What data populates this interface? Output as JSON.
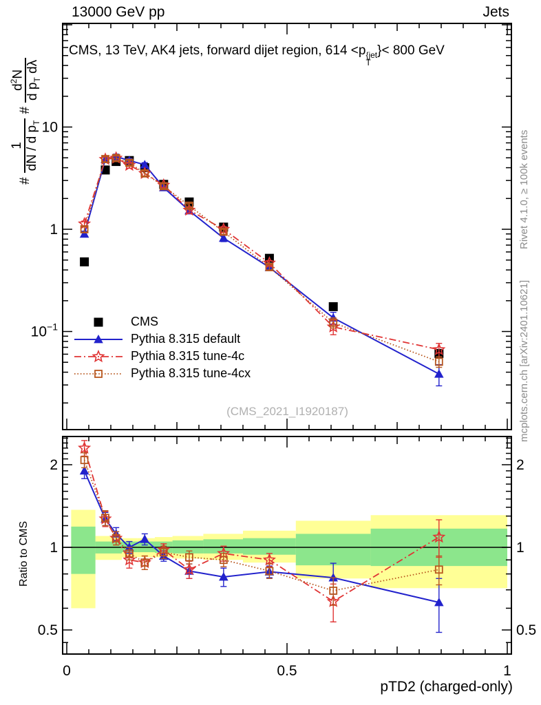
{
  "header": {
    "beam": "13000 GeV pp",
    "process": "Jets"
  },
  "title": {
    "prefix": "CMS, 13 TeV, AK4 jets, forward dijet region, 614 <p",
    "sup": "{jet",
    "sub": "T",
    "suffix": "}< 800 GeV"
  },
  "y_axis_label": {
    "hash1": "#",
    "frac1": {
      "num": "1",
      "den": "dN / d p",
      "den_sub": "T"
    },
    "hash2": "#",
    "frac2": {
      "num_pre": "d",
      "num_sup": "2",
      "num_post": "N",
      "den_pre": "d p",
      "den_sub": "T",
      "den_post": " dλ"
    }
  },
  "ratio_axis_label": "Ratio to CMS",
  "x_axis_label": "pTD2 (charged-only)",
  "watermark": "(CMS_2021_I1920187)",
  "credits": {
    "rivet": "Rivet 4.1.0, ≥ 100k events",
    "mcplots": "mcplots.cern.ch [arXiv:2401.10621]"
  },
  "legend": {
    "items": [
      {
        "label": "CMS",
        "series": 0
      },
      {
        "label": "Pythia 8.315 default",
        "series": 1
      },
      {
        "label": "Pythia 8.315 tune-4c",
        "series": 2
      },
      {
        "label": "Pythia 8.315 tune-4cx",
        "series": 3
      }
    ]
  },
  "chart_data": {
    "type": "line",
    "title": "CMS, 13 TeV, AK4 jets, forward dijet region, 614 < pT{jet} < 800 GeV",
    "xlabel": "pTD2 (charged-only)",
    "ylabel": "# 1/(dN/dpT) # d²N/(dpT dλ)",
    "ylabel_ratio": "Ratio to CMS",
    "yscale": "log",
    "xlim": [
      -0.009,
      1.009
    ],
    "ylim_main": [
      0.011,
      103
    ],
    "ylim_ratio": [
      0.41,
      2.67
    ],
    "x": [
      0.04,
      0.0875,
      0.112,
      0.142,
      0.177,
      0.22,
      0.278,
      0.356,
      0.46,
      0.605,
      0.845
    ],
    "series": [
      {
        "name": "CMS",
        "color": "#000000",
        "marker": "square-filled",
        "line": "none",
        "values": [
          0.48,
          3.8,
          4.6,
          4.7,
          4.0,
          2.75,
          1.85,
          1.05,
          0.52,
          0.175,
          0.061
        ],
        "errors": [
          0.01,
          0.08,
          0.09,
          0.09,
          0.08,
          0.06,
          0.04,
          0.022,
          0.012,
          0.005,
          0.003
        ]
      },
      {
        "name": "Pythia 8.315 default",
        "color": "#2222cc",
        "marker": "triangle-filled",
        "line": "solid",
        "values": [
          0.9,
          4.83,
          5.15,
          4.7,
          4.28,
          2.56,
          1.52,
          0.82,
          0.424,
          0.136,
          0.0384
        ],
        "errors": [
          0.058,
          0.27,
          0.28,
          0.24,
          0.2,
          0.11,
          0.09,
          0.063,
          0.021,
          0.018,
          0.009
        ],
        "ratio": [
          1.9,
          1.27,
          1.12,
          1.0,
          1.07,
          0.93,
          0.82,
          0.78,
          0.815,
          0.775,
          0.63
        ],
        "ratio_errors": [
          0.12,
          0.07,
          0.06,
          0.05,
          0.05,
          0.04,
          0.05,
          0.06,
          0.04,
          0.1,
          0.14
        ]
      },
      {
        "name": "Pythia 8.315 tune-4c",
        "color": "#e03434",
        "marker": "star-open",
        "line": "dashdot",
        "values": [
          1.13,
          4.83,
          4.97,
          4.23,
          3.52,
          2.7,
          1.54,
          1.0,
          0.468,
          0.111,
          0.0665
        ],
        "errors": [
          0.072,
          0.3,
          0.28,
          0.28,
          0.2,
          0.14,
          0.11,
          0.063,
          0.026,
          0.018,
          0.01
        ],
        "ratio": [
          2.3,
          1.27,
          1.08,
          0.9,
          0.88,
          0.98,
          0.83,
          0.95,
          0.9,
          0.635,
          1.09
        ],
        "ratio_errors": [
          0.15,
          0.08,
          0.06,
          0.06,
          0.05,
          0.05,
          0.06,
          0.06,
          0.05,
          0.1,
          0.17
        ]
      },
      {
        "name": "Pythia 8.315 tune-4cx",
        "color": "#b8571f",
        "marker": "square-open",
        "line": "dotted",
        "values": [
          1.0,
          4.86,
          4.97,
          4.47,
          3.52,
          2.64,
          1.7,
          0.945,
          0.426,
          0.122,
          0.0506
        ],
        "errors": [
          0.062,
          0.3,
          0.28,
          0.24,
          0.2,
          0.14,
          0.09,
          0.053,
          0.026,
          0.014,
          0.006
        ],
        "ratio": [
          2.08,
          1.28,
          1.08,
          0.95,
          0.88,
          0.96,
          0.92,
          0.9,
          0.82,
          0.695,
          0.83
        ],
        "ratio_errors": [
          0.13,
          0.08,
          0.06,
          0.05,
          0.05,
          0.05,
          0.05,
          0.05,
          0.05,
          0.08,
          0.1
        ]
      }
    ],
    "ratio_bands": {
      "edges": [
        0.01,
        0.065,
        0.1,
        0.125,
        0.16,
        0.2,
        0.24,
        0.31,
        0.4,
        0.52,
        0.69,
        1.0
      ],
      "yellow": [
        [
          0.6,
          1.37
        ],
        [
          0.9,
          1.1
        ],
        [
          0.9,
          1.09
        ],
        [
          0.92,
          1.08
        ],
        [
          0.92,
          1.08
        ],
        [
          0.92,
          1.09
        ],
        [
          0.91,
          1.1
        ],
        [
          0.9,
          1.12
        ],
        [
          0.88,
          1.15
        ],
        [
          0.77,
          1.25
        ],
        [
          0.71,
          1.31
        ]
      ],
      "green": [
        [
          0.8,
          1.19
        ],
        [
          0.95,
          1.05
        ],
        [
          0.95,
          1.05
        ],
        [
          0.96,
          1.05
        ],
        [
          0.96,
          1.05
        ],
        [
          0.955,
          1.05
        ],
        [
          0.95,
          1.06
        ],
        [
          0.95,
          1.07
        ],
        [
          0.94,
          1.08
        ],
        [
          0.86,
          1.12
        ],
        [
          0.855,
          1.17
        ]
      ],
      "yellow_color": "#ffff96",
      "green_color": "#8ce68c"
    },
    "axes": {
      "x": {
        "ticks": [
          {
            "v": 0,
            "label": "0"
          },
          {
            "v": 0.5,
            "label": "0.5"
          },
          {
            "v": 1,
            "label": "1"
          }
        ],
        "medium": [
          0.25,
          0.75
        ],
        "minor_step": 0.05
      },
      "y_main": {
        "ticks": [
          {
            "v": 10,
            "label": "10"
          },
          {
            "v": 1,
            "label": "1"
          },
          {
            "v": 0.1,
            "label": "10",
            "sup": "−1"
          }
        ]
      },
      "y_ratio": {
        "ticks": [
          {
            "v": 2,
            "label": "2"
          },
          {
            "v": 1,
            "label": "1"
          },
          {
            "v": 0.5,
            "label": "0.5"
          }
        ]
      }
    }
  }
}
